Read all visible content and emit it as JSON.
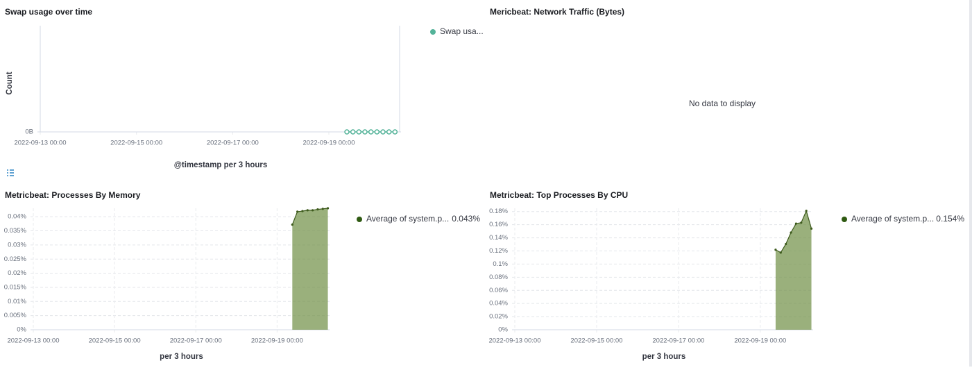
{
  "chart_data": [
    {
      "type": "line",
      "title": "Swap usage over time",
      "y_label": "Count",
      "x_label": "@timestamp per 3 hours",
      "x": [
        "2022-09-19 09:00",
        "2022-09-19 12:00",
        "2022-09-19 15:00",
        "2022-09-19 18:00",
        "2022-09-19 21:00",
        "2022-09-20 00:00",
        "2022-09-20 03:00",
        "2022-09-20 06:00",
        "2022-09-20 09:00"
      ],
      "series": [
        {
          "name": "Swap usa...",
          "color": "#54b399",
          "values": [
            0,
            0,
            0,
            0,
            0,
            0,
            0,
            0,
            0
          ]
        }
      ],
      "xlim": [
        "2022-09-13 00:00",
        "2022-09-20 12:00"
      ],
      "xticks": [
        "2022-09-13 00:00",
        "2022-09-15 00:00",
        "2022-09-17 00:00",
        "2022-09-19 00:00"
      ],
      "ylim": [
        0,
        1
      ],
      "yticks": [
        {
          "value": 0,
          "label": "0B"
        }
      ],
      "grid": false,
      "legend": "right"
    },
    {
      "type": "empty",
      "title": "Mericbeat: Network Traffic (Bytes)",
      "message": "No data to display"
    },
    {
      "type": "area",
      "title": "Metricbeat: Processes By Memory",
      "x_label": "per 3 hours",
      "x": [
        "2022-09-19 09:00",
        "2022-09-19 12:00",
        "2022-09-19 15:00",
        "2022-09-19 18:00",
        "2022-09-19 21:00",
        "2022-09-20 00:00",
        "2022-09-20 03:00",
        "2022-09-20 06:00"
      ],
      "series": [
        {
          "name": "Average of system.p...",
          "color": "#6f8f45",
          "values": [
            0.0372,
            0.0418,
            0.042,
            0.0423,
            0.0423,
            0.0426,
            0.0428,
            0.043
          ],
          "last_value_label": "0.043%"
        }
      ],
      "xlim": [
        "2022-09-13 00:00",
        "2022-09-20 07:00"
      ],
      "xticks": [
        "2022-09-13 00:00",
        "2022-09-15 00:00",
        "2022-09-17 00:00",
        "2022-09-19 00:00"
      ],
      "ylim": [
        0,
        0.043
      ],
      "yticks": [
        {
          "value": 0,
          "label": "0%"
        },
        {
          "value": 0.005,
          "label": "0.005%"
        },
        {
          "value": 0.01,
          "label": "0.01%"
        },
        {
          "value": 0.015,
          "label": "0.015%"
        },
        {
          "value": 0.02,
          "label": "0.02%"
        },
        {
          "value": 0.025,
          "label": "0.025%"
        },
        {
          "value": 0.03,
          "label": "0.03%"
        },
        {
          "value": 0.035,
          "label": "0.035%"
        },
        {
          "value": 0.04,
          "label": "0.04%"
        }
      ],
      "grid": true,
      "legend": "right"
    },
    {
      "type": "area",
      "title": "Metricbeat: Top Processes By CPU",
      "x_label": "per 3 hours",
      "x": [
        "2022-09-19 09:00",
        "2022-09-19 12:00",
        "2022-09-19 15:00",
        "2022-09-19 18:00",
        "2022-09-19 21:00",
        "2022-09-20 00:00",
        "2022-09-20 03:00",
        "2022-09-20 06:00"
      ],
      "series": [
        {
          "name": "Average of system.p...",
          "color": "#6f8f45",
          "values": [
            0.1218,
            0.1175,
            0.1305,
            0.148,
            0.1617,
            0.163,
            0.181,
            0.154
          ],
          "last_value_label": "0.154%"
        }
      ],
      "xlim": [
        "2022-09-13 00:00",
        "2022-09-20 07:00"
      ],
      "xticks": [
        "2022-09-13 00:00",
        "2022-09-15 00:00",
        "2022-09-17 00:00",
        "2022-09-19 00:00"
      ],
      "ylim": [
        0,
        0.185
      ],
      "yticks": [
        {
          "value": 0,
          "label": "0%"
        },
        {
          "value": 0.02,
          "label": "0.02%"
        },
        {
          "value": 0.04,
          "label": "0.04%"
        },
        {
          "value": 0.06,
          "label": "0.06%"
        },
        {
          "value": 0.08,
          "label": "0.08%"
        },
        {
          "value": 0.1,
          "label": "0.1%"
        },
        {
          "value": 0.12,
          "label": "0.12%"
        },
        {
          "value": 0.14,
          "label": "0.14%"
        },
        {
          "value": 0.16,
          "label": "0.16%"
        },
        {
          "value": 0.18,
          "label": "0.18%"
        }
      ],
      "grid": true,
      "legend": "right"
    }
  ]
}
